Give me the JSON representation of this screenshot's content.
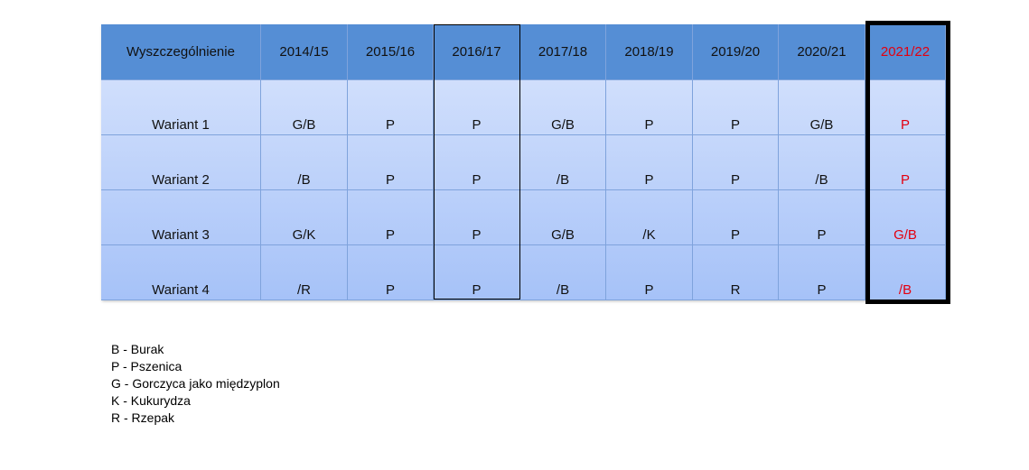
{
  "table": {
    "header": [
      "Wyszczególnienie",
      "2014/15",
      "2015/16",
      "2016/17",
      "2017/18",
      "2018/19",
      "2019/20",
      "2020/21",
      "2021/22"
    ],
    "rows": [
      [
        "Wariant 1",
        "G/B",
        "P",
        "P",
        "G/B",
        "P",
        "P",
        "G/B",
        "P"
      ],
      [
        "Wariant 2",
        "/B",
        "P",
        "P",
        "/B",
        "P",
        "P",
        "/B",
        "P"
      ],
      [
        "Wariant 3",
        "G/K",
        "P",
        "P",
        "G/B",
        "/K",
        "P",
        "P",
        "G/B"
      ],
      [
        "Wariant 4",
        "/R",
        "P",
        "P",
        "/B",
        "P",
        "R",
        "P",
        "/B"
      ]
    ]
  },
  "legend": [
    "B - Burak",
    "P - Pszenica",
    "G - Gorczyca jako międzyplon",
    "K - Kukurydza",
    "R - Rzepak"
  ]
}
